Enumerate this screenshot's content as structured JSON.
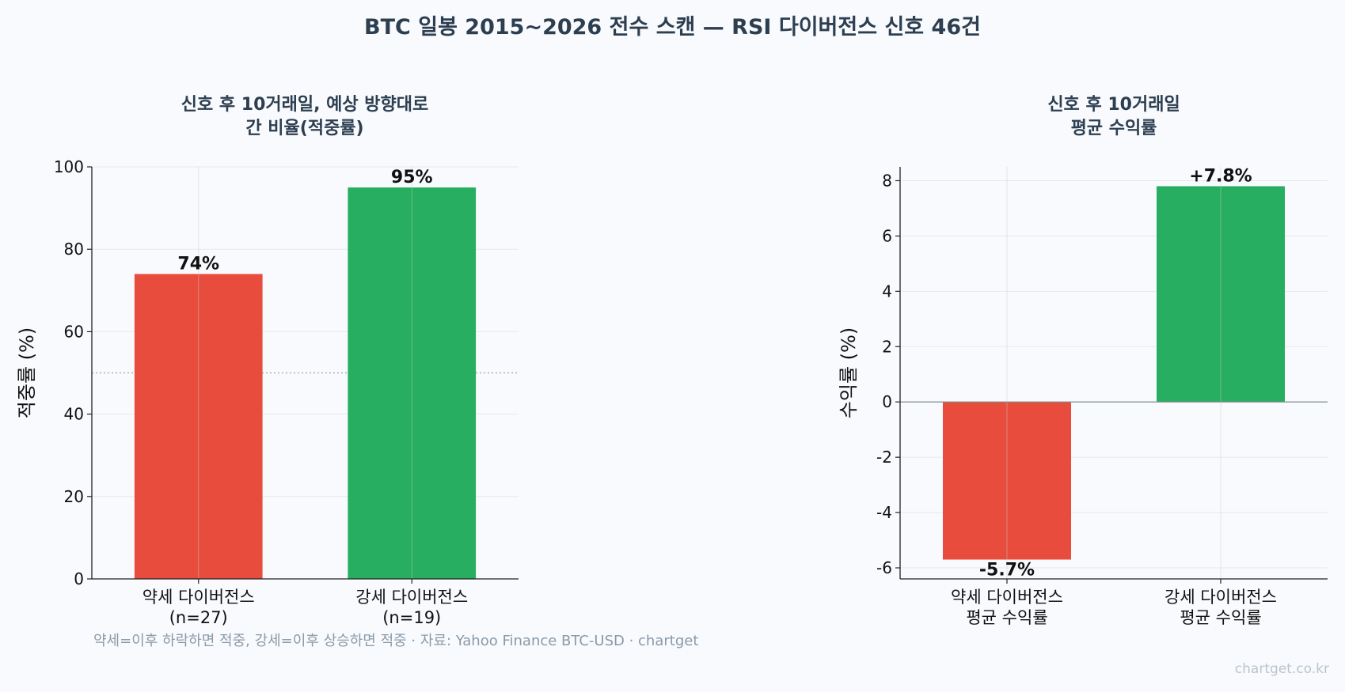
{
  "title": "BTC 일봉 2015~2026 전수 스캔 — RSI 다이버전스 신호 46건",
  "footnote": "약세=이후 하락하면 적중, 강세=이후 상승하면 적중 · 자료: Yahoo Finance BTC-USD · chartget",
  "watermark": "chartget.co.kr",
  "colors": {
    "bearish": "#e74c3c",
    "bullish": "#27ae60",
    "title": "#2c3e50"
  },
  "chart_data": [
    {
      "type": "bar",
      "title_lines": [
        "신호 후 10거래일, 예상 방향대로",
        "간 비율(적중률)"
      ],
      "categories": [
        [
          "약세 다이버전스",
          "(n=27)"
        ],
        [
          "강세 다이버전스",
          "(n=19)"
        ]
      ],
      "values": [
        74,
        95
      ],
      "labels": [
        "74%",
        "95%"
      ],
      "colors": [
        "#e74c3c",
        "#27ae60"
      ],
      "ylabel": "적중률 (%)",
      "ylim": [
        0,
        100
      ],
      "yticks": [
        0,
        20,
        40,
        60,
        80,
        100
      ],
      "ytick_labels": [
        "0",
        "20",
        "40",
        "60",
        "80",
        "100"
      ],
      "reference_line": 50,
      "grid": true
    },
    {
      "type": "bar",
      "title_lines": [
        "신호 후 10거래일",
        "평균 수익률"
      ],
      "categories": [
        [
          "약세 다이버전스",
          "평균 수익률"
        ],
        [
          "강세 다이버전스",
          "평균 수익률"
        ]
      ],
      "values": [
        -5.7,
        7.8
      ],
      "labels": [
        "-5.7%",
        "+7.8%"
      ],
      "colors": [
        "#e74c3c",
        "#27ae60"
      ],
      "ylabel": "수익률 (%)",
      "ylim": [
        -6.4,
        8.5
      ],
      "yticks": [
        -6,
        -4,
        -2,
        0,
        2,
        4,
        6,
        8
      ],
      "ytick_labels": [
        "-6",
        "-4",
        "-2",
        "0",
        "2",
        "4",
        "6",
        "8"
      ],
      "zero_line": true,
      "grid": true
    }
  ]
}
